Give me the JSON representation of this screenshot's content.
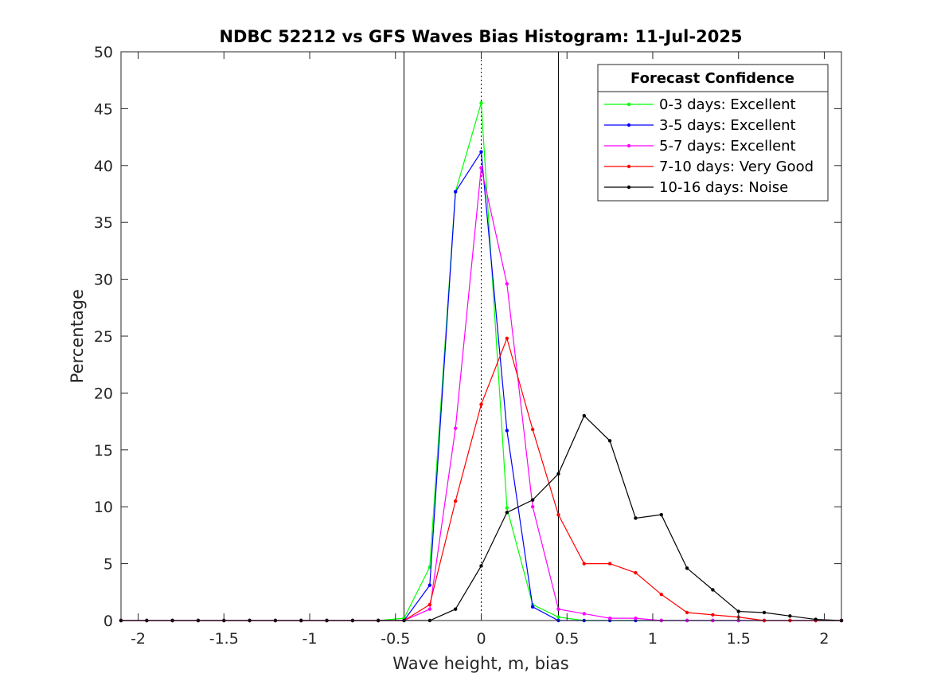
{
  "chart_data": {
    "type": "line",
    "title": "NDBC 52212 vs GFS Waves Bias Histogram: 11-Jul-2025",
    "xlabel": "Wave height, m, bias",
    "ylabel": "Percentage",
    "xlim": [
      -2.1,
      2.1
    ],
    "ylim": [
      0,
      50
    ],
    "xticks": [
      -2,
      -1.5,
      -1,
      -0.5,
      0,
      0.5,
      1,
      1.5,
      2
    ],
    "xtick_labels": [
      "-2",
      "-1.5",
      "-1",
      "-0.5",
      "0",
      "0.5",
      "1",
      "1.5",
      "2"
    ],
    "yticks": [
      0,
      5,
      10,
      15,
      20,
      25,
      30,
      35,
      40,
      45,
      50
    ],
    "ytick_labels": [
      "0",
      "5",
      "10",
      "15",
      "20",
      "25",
      "30",
      "35",
      "40",
      "45",
      "50"
    ],
    "grid": false,
    "legend": {
      "title": "Forecast Confidence",
      "placement": "top-right"
    },
    "reference_lines": [
      {
        "x": -0.45,
        "style": "solid"
      },
      {
        "x": 0,
        "style": "dotted"
      },
      {
        "x": 0.45,
        "style": "solid"
      }
    ],
    "x": [
      -2.1,
      -1.95,
      -1.8,
      -1.65,
      -1.5,
      -1.35,
      -1.2,
      -1.05,
      -0.9,
      -0.75,
      -0.6,
      -0.45,
      -0.3,
      -0.15,
      0,
      0.15,
      0.3,
      0.45,
      0.6,
      0.75,
      0.9,
      1.05,
      1.2,
      1.35,
      1.5,
      1.65,
      1.8,
      1.95,
      2.1
    ],
    "series": [
      {
        "name": "0-3 days: Excellent",
        "color": "#00ff00",
        "values": [
          0,
          0,
          0,
          0,
          0,
          0,
          0,
          0,
          0,
          0,
          0,
          0.2,
          4.7,
          37.7,
          45.5,
          9.9,
          1.4,
          0.3,
          0,
          0,
          0,
          0,
          0,
          0,
          0,
          0,
          0,
          0,
          0
        ]
      },
      {
        "name": "3-5 days: Excellent",
        "color": "#0000ff",
        "values": [
          0,
          0,
          0,
          0,
          0,
          0,
          0,
          0,
          0,
          0,
          0,
          0,
          3.1,
          37.7,
          41.2,
          16.7,
          1.2,
          0,
          0,
          0,
          0,
          0,
          0,
          0,
          0,
          0,
          0,
          0,
          0
        ]
      },
      {
        "name": "5-7 days: Excellent",
        "color": "#ff00ff",
        "values": [
          0,
          0,
          0,
          0,
          0,
          0,
          0,
          0,
          0,
          0,
          0,
          0,
          1.0,
          16.9,
          39.8,
          29.6,
          10.0,
          1.0,
          0.6,
          0.2,
          0.2,
          0,
          0,
          0,
          0,
          0,
          0,
          0,
          0
        ]
      },
      {
        "name": "7-10 days: Very Good",
        "color": "#ff0000",
        "values": [
          0,
          0,
          0,
          0,
          0,
          0,
          0,
          0,
          0,
          0,
          0,
          0,
          1.4,
          10.5,
          19.0,
          24.8,
          16.8,
          9.3,
          5.0,
          5.0,
          4.2,
          2.3,
          0.7,
          0.5,
          0.3,
          0,
          0,
          0,
          0
        ]
      },
      {
        "name": "10-16 days: Noise",
        "color": "#000000",
        "values": [
          0,
          0,
          0,
          0,
          0,
          0,
          0,
          0,
          0,
          0,
          0,
          0,
          0,
          1.0,
          4.8,
          9.5,
          10.6,
          12.9,
          18.0,
          15.8,
          9.0,
          9.3,
          4.6,
          2.7,
          0.8,
          0.7,
          0.4,
          0.1,
          0
        ]
      }
    ]
  }
}
